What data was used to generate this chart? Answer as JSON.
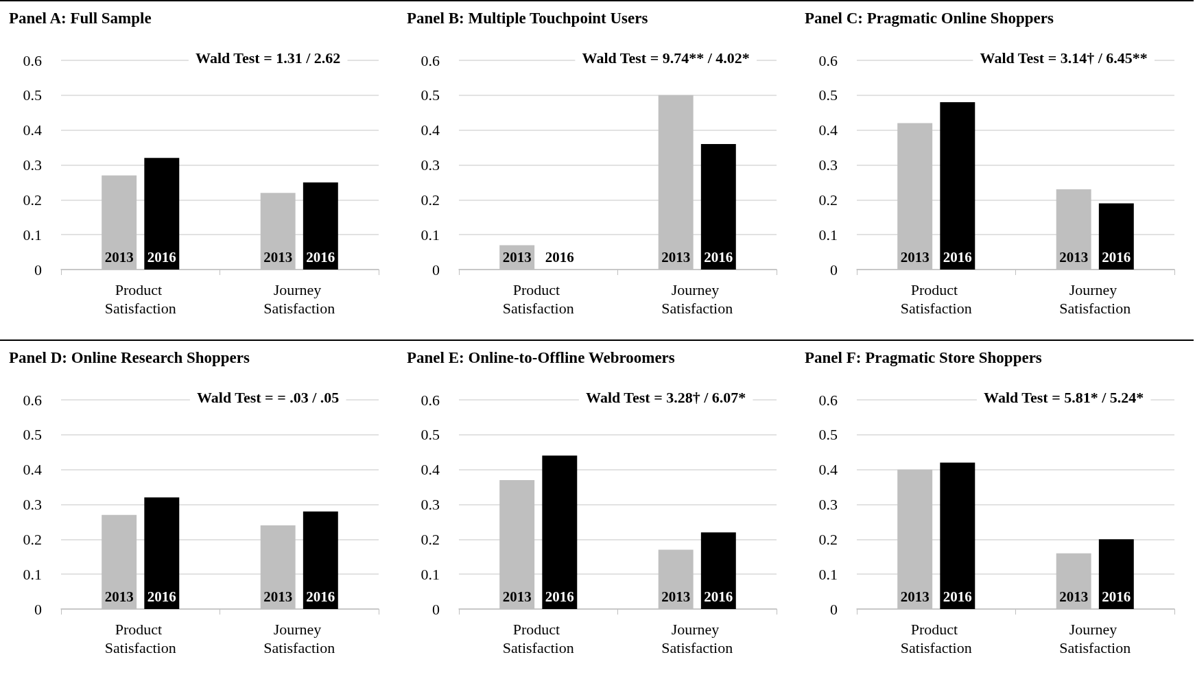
{
  "chart_data": [
    {
      "type": "bar",
      "title": "Panel A: Full Sample",
      "annotations": [
        "Wald Test = 1.31 / 2.62"
      ],
      "categories": [
        "Product Satisfaction",
        "Journey Satisfaction"
      ],
      "ylim": [
        0,
        0.6
      ],
      "yticks": [
        0,
        0.1,
        0.2,
        0.3,
        0.4,
        0.5,
        0.6
      ],
      "grid": "y",
      "series": [
        {
          "name": "2013",
          "color": "#bfbfbf",
          "values": [
            0.27,
            0.22
          ]
        },
        {
          "name": "2016",
          "color": "#000000",
          "values": [
            0.32,
            0.25
          ]
        }
      ]
    },
    {
      "type": "bar",
      "title": "Panel B: Multiple Touchpoint Users",
      "annotations": [
        "Wald Test = 9.74** / 4.02*"
      ],
      "categories": [
        "Product Satisfaction",
        "Journey Satisfaction"
      ],
      "ylim": [
        0,
        0.6
      ],
      "yticks": [
        0,
        0.1,
        0.2,
        0.3,
        0.4,
        0.5,
        0.6
      ],
      "grid": "y",
      "series": [
        {
          "name": "2013",
          "color": "#bfbfbf",
          "values": [
            0.07,
            0.5
          ]
        },
        {
          "name": "2016",
          "color": "#000000",
          "values": [
            0,
            0.36
          ]
        }
      ]
    },
    {
      "type": "bar",
      "title": "Panel C: Pragmatic Online Shoppers",
      "annotations": [
        "Wald Test = 3.14† / 6.45**"
      ],
      "categories": [
        "Product Satisfaction",
        "Journey Satisfaction"
      ],
      "ylim": [
        0,
        0.6
      ],
      "yticks": [
        0,
        0.1,
        0.2,
        0.3,
        0.4,
        0.5,
        0.6
      ],
      "grid": "y",
      "series": [
        {
          "name": "2013",
          "color": "#bfbfbf",
          "values": [
            0.42,
            0.23
          ]
        },
        {
          "name": "2016",
          "color": "#000000",
          "values": [
            0.48,
            0.19
          ]
        }
      ]
    },
    {
      "type": "bar",
      "title": "Panel D: Online Research Shoppers",
      "annotations": [
        "Wald Test = = .03 / .05"
      ],
      "categories": [
        "Product Satisfaction",
        "Journey Satisfaction"
      ],
      "ylim": [
        0,
        0.6
      ],
      "yticks": [
        0,
        0.1,
        0.2,
        0.3,
        0.4,
        0.5,
        0.6
      ],
      "grid": "y",
      "series": [
        {
          "name": "2013",
          "color": "#bfbfbf",
          "values": [
            0.27,
            0.24
          ]
        },
        {
          "name": "2016",
          "color": "#000000",
          "values": [
            0.32,
            0.28
          ]
        }
      ]
    },
    {
      "type": "bar",
      "title": "Panel E: Online-to-Offline Webroomers",
      "annotations": [
        "Wald Test = 3.28† / 6.07*"
      ],
      "categories": [
        "Product Satisfaction",
        "Journey Satisfaction"
      ],
      "ylim": [
        0,
        0.6
      ],
      "yticks": [
        0,
        0.1,
        0.2,
        0.3,
        0.4,
        0.5,
        0.6
      ],
      "grid": "y",
      "series": [
        {
          "name": "2013",
          "color": "#bfbfbf",
          "values": [
            0.37,
            0.17
          ]
        },
        {
          "name": "2016",
          "color": "#000000",
          "values": [
            0.44,
            0.22
          ]
        }
      ]
    },
    {
      "type": "bar",
      "title": "Panel F: Pragmatic Store Shoppers",
      "annotations": [
        "Wald Test = 5.81* / 5.24*"
      ],
      "categories": [
        "Product Satisfaction",
        "Journey Satisfaction"
      ],
      "ylim": [
        0,
        0.6
      ],
      "yticks": [
        0,
        0.1,
        0.2,
        0.3,
        0.4,
        0.5,
        0.6
      ],
      "grid": "y",
      "series": [
        {
          "name": "2013",
          "color": "#bfbfbf",
          "values": [
            0.4,
            0.16
          ]
        },
        {
          "name": "2016",
          "color": "#000000",
          "values": [
            0.42,
            0.2
          ]
        }
      ]
    }
  ]
}
